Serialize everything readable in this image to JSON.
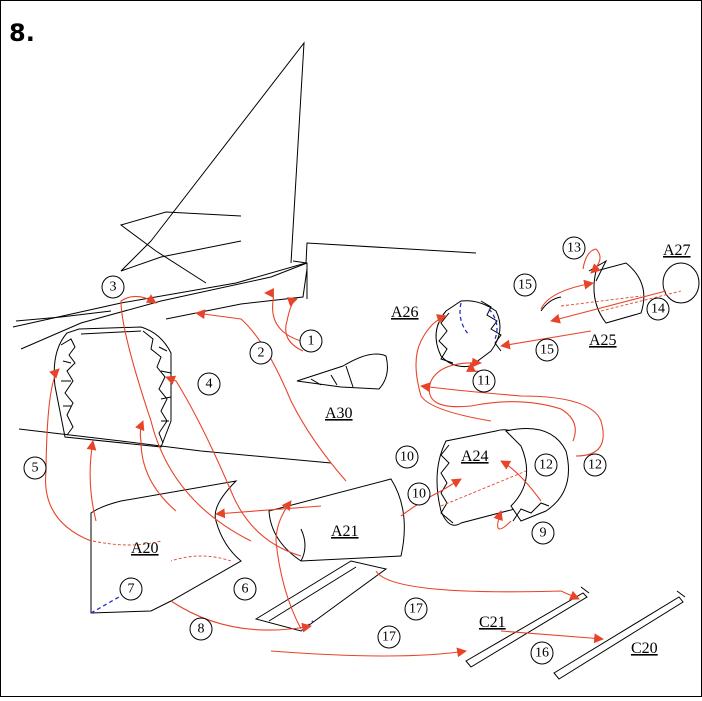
{
  "step_label": "8.",
  "part_labels": [
    "A20",
    "A21",
    "A24",
    "A25",
    "A26",
    "A27",
    "A30",
    "C20",
    "C21"
  ],
  "step_numbers": [
    "1",
    "2",
    "3",
    "4",
    "5",
    "6",
    "7",
    "8",
    "9",
    "10",
    "10",
    "11",
    "12",
    "12",
    "13",
    "14",
    "15",
    "15",
    "16",
    "17",
    "17"
  ],
  "colors": {
    "arrow": "#e8442a",
    "dash": "#2030d0",
    "line": "#000000"
  }
}
